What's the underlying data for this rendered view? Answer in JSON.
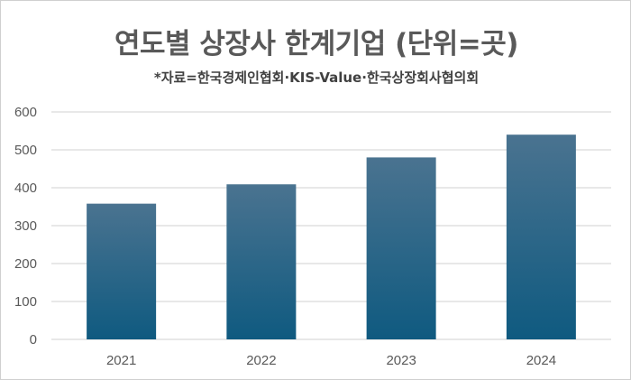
{
  "chart_data": {
    "type": "bar",
    "title": "연도별 상장사 한계기업 (단위=곳)",
    "subtitle": "*자료=한국경제인협회·KIS-Value·한국상장회사협의회",
    "categories": [
      "2021",
      "2022",
      "2023",
      "2024"
    ],
    "values": [
      358,
      409,
      480,
      540
    ],
    "ylim": [
      0,
      600
    ],
    "yticks": [
      0,
      100,
      200,
      300,
      400,
      500,
      600
    ],
    "grid": true,
    "legend": "none",
    "colors": {
      "bar_top": "#4a7390",
      "bar_bottom": "#0f5a80",
      "grid": "#d9d9d9"
    }
  }
}
